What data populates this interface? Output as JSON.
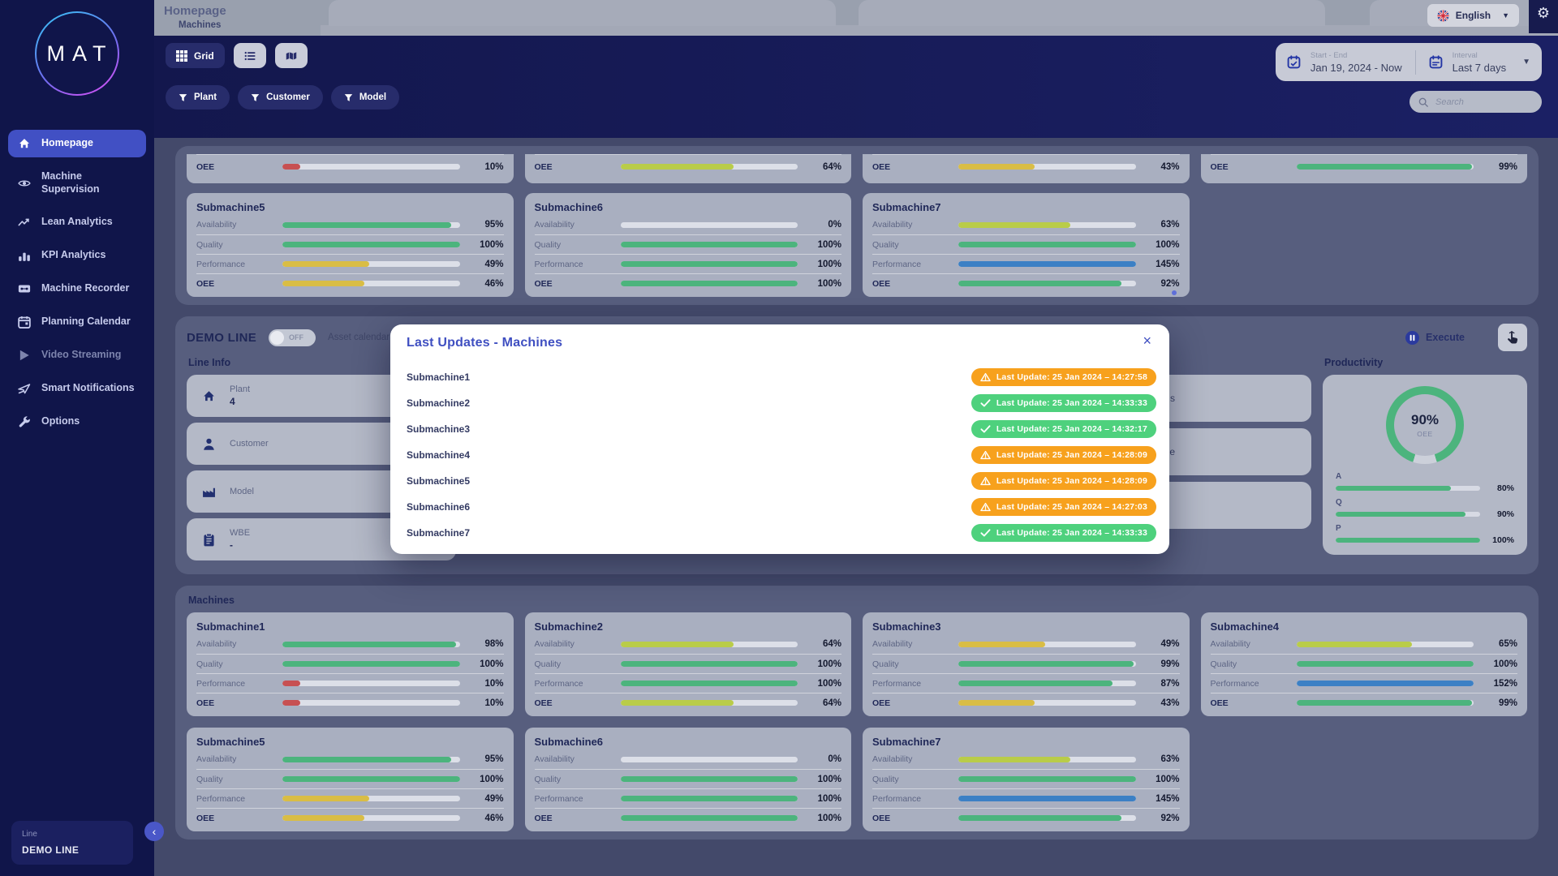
{
  "colors": {
    "green": "#4cb47d",
    "lime": "#b9cc49",
    "yellow": "#d9bd45",
    "red": "#c75052",
    "blue": "#3c80c5",
    "badge_orange": "#f7a11d",
    "badge_green": "#4ed17d",
    "accent": "#3f4fc1",
    "active_nav": "#4150c4"
  },
  "breadcrumb": {
    "title": "Homepage",
    "subtitle": "Machines"
  },
  "language": {
    "label": "English"
  },
  "header": {
    "view_toggles": [
      {
        "name": "grid",
        "icon": "grid",
        "label": "Grid",
        "active": true
      },
      {
        "name": "list",
        "icon": "list"
      },
      {
        "name": "map",
        "icon": "map"
      }
    ],
    "filters": [
      {
        "label": "Plant"
      },
      {
        "label": "Customer"
      },
      {
        "label": "Model"
      }
    ],
    "date_range": {
      "label": "Start - End",
      "value": "Jan 19, 2024 - Now"
    },
    "interval": {
      "label": "Interval",
      "value": "Last 7 days"
    },
    "search_placeholder": "Search"
  },
  "sidebar": {
    "logo": "MAT",
    "items": [
      {
        "label": "Homepage",
        "icon": "home",
        "active": true
      },
      {
        "label": "Machine Supervision",
        "icon": "eye"
      },
      {
        "label": "Lean Analytics",
        "icon": "trend"
      },
      {
        "label": "KPI Analytics",
        "icon": "kpi"
      },
      {
        "label": "Machine Recorder",
        "icon": "recorder"
      },
      {
        "label": "Planning Calendar",
        "icon": "calendar"
      },
      {
        "label": "Video Streaming",
        "icon": "play",
        "muted": true
      },
      {
        "label": "Smart Notifications",
        "icon": "send"
      },
      {
        "label": "Options",
        "icon": "wrench"
      }
    ],
    "line_panel": {
      "label": "Line",
      "value": "DEMO LINE"
    }
  },
  "machines": [
    {
      "name": "Submachine1",
      "metrics": [
        {
          "label": "Availability",
          "value": 98,
          "color": "green"
        },
        {
          "label": "Quality",
          "value": 100,
          "color": "green"
        },
        {
          "label": "Performance",
          "value": 10,
          "color": "red"
        },
        {
          "label": "OEE",
          "value": 10,
          "color": "red"
        }
      ]
    },
    {
      "name": "Submachine2",
      "metrics": [
        {
          "label": "Availability",
          "value": 64,
          "color": "lime"
        },
        {
          "label": "Quality",
          "value": 100,
          "color": "green"
        },
        {
          "label": "Performance",
          "value": 100,
          "color": "green"
        },
        {
          "label": "OEE",
          "value": 64,
          "color": "lime"
        }
      ]
    },
    {
      "name": "Submachine3",
      "metrics": [
        {
          "label": "Availability",
          "value": 49,
          "color": "yellow"
        },
        {
          "label": "Quality",
          "value": 99,
          "color": "green"
        },
        {
          "label": "Performance",
          "value": 87,
          "color": "green"
        },
        {
          "label": "OEE",
          "value": 43,
          "color": "yellow"
        }
      ]
    },
    {
      "name": "Submachine4",
      "metrics": [
        {
          "label": "Availability",
          "value": 65,
          "color": "lime"
        },
        {
          "label": "Quality",
          "value": 100,
          "color": "green"
        },
        {
          "label": "Performance",
          "value": 152,
          "color": "blue"
        },
        {
          "label": "OEE",
          "value": 99,
          "color": "green"
        }
      ]
    },
    {
      "name": "Submachine5",
      "metrics": [
        {
          "label": "Availability",
          "value": 95,
          "color": "green"
        },
        {
          "label": "Quality",
          "value": 100,
          "color": "green"
        },
        {
          "label": "Performance",
          "value": 49,
          "color": "yellow"
        },
        {
          "label": "OEE",
          "value": 46,
          "color": "yellow"
        }
      ]
    },
    {
      "name": "Submachine6",
      "metrics": [
        {
          "label": "Availability",
          "value": 0,
          "color": "none"
        },
        {
          "label": "Quality",
          "value": 100,
          "color": "green"
        },
        {
          "label": "Performance",
          "value": 100,
          "color": "green"
        },
        {
          "label": "OEE",
          "value": 100,
          "color": "green"
        }
      ]
    },
    {
      "name": "Submachine7",
      "metrics": [
        {
          "label": "Availability",
          "value": 63,
          "color": "lime"
        },
        {
          "label": "Quality",
          "value": 100,
          "color": "green"
        },
        {
          "label": "Performance",
          "value": 145,
          "color": "blue"
        },
        {
          "label": "OEE",
          "value": 92,
          "color": "green"
        }
      ]
    }
  ],
  "machines_section": {
    "title": "Machines"
  },
  "demo_line": {
    "title": "DEMO LINE",
    "toggle_label": "OFF",
    "asset_calendar_label": "Asset calendar",
    "execute_label": "Execute",
    "line_info": {
      "title": "Line Info",
      "items": [
        {
          "icon": "home",
          "label": "Plant",
          "value": "4"
        },
        {
          "icon": "person",
          "label": "Customer",
          "value": ""
        },
        {
          "icon": "factory",
          "label": "Model",
          "value": ""
        },
        {
          "icon": "clipboard",
          "label": "WBE",
          "value": "-"
        }
      ]
    },
    "middle_row_fragments": [
      "s",
      "ne",
      ""
    ],
    "productivity": {
      "title": "Productivity",
      "gauge": {
        "value": "90%",
        "label": "OEE",
        "pct": 90
      },
      "bars": [
        {
          "label": "A",
          "value": "80%",
          "pct": 80
        },
        {
          "label": "Q",
          "value": "90%",
          "pct": 90
        },
        {
          "label": "P",
          "value": "100%",
          "pct": 100
        }
      ]
    }
  },
  "modal": {
    "title": "Last Updates - Machines",
    "close_label": "×",
    "rows": [
      {
        "name": "Submachine1",
        "status": "warning",
        "text": "Last Update: 25 Jan 2024 – 14:27:58"
      },
      {
        "name": "Submachine2",
        "status": "ok",
        "text": "Last Update: 25 Jan 2024 – 14:33:33"
      },
      {
        "name": "Submachine3",
        "status": "ok",
        "text": "Last Update: 25 Jan 2024 – 14:32:17"
      },
      {
        "name": "Submachine4",
        "status": "warning",
        "text": "Last Update: 25 Jan 2024 – 14:28:09"
      },
      {
        "name": "Submachine5",
        "status": "warning",
        "text": "Last Update: 25 Jan 2024 – 14:28:09"
      },
      {
        "name": "Submachine6",
        "status": "warning",
        "text": "Last Update: 25 Jan 2024 – 14:27:03"
      },
      {
        "name": "Submachine7",
        "status": "ok",
        "text": "Last Update: 25 Jan 2024 – 14:33:33"
      }
    ]
  }
}
